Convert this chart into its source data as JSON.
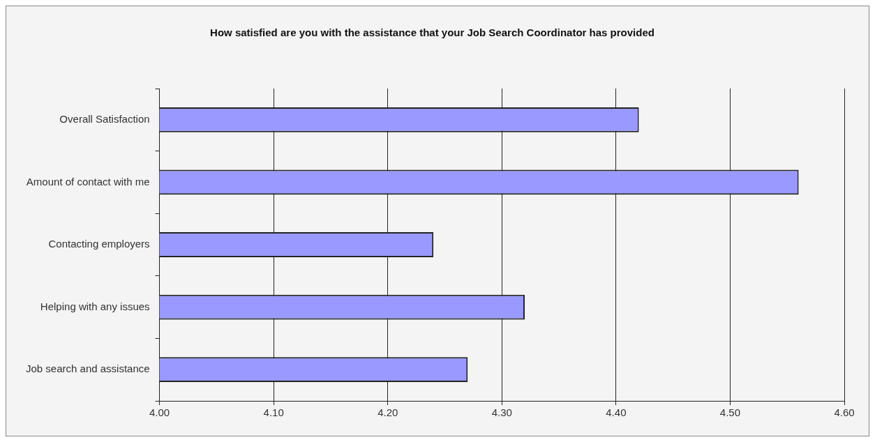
{
  "chart_data": {
    "type": "bar",
    "orientation": "horizontal",
    "title": "How satisfied are you with the assistance that your Job Search Coordinator has provided",
    "categories": [
      "Overall Satisfaction",
      "Amount of contact with me",
      "Contacting employers",
      "Helping with any issues",
      "Job search and assistance"
    ],
    "values": [
      4.42,
      4.56,
      4.24,
      4.32,
      4.27
    ],
    "color": "#9999ff",
    "xlim": [
      4.0,
      4.6
    ],
    "xticks": [
      {
        "value": 4.0,
        "label": "4.00"
      },
      {
        "value": 4.1,
        "label": "4.10"
      },
      {
        "value": 4.2,
        "label": "4.20"
      },
      {
        "value": 4.3,
        "label": "4.30"
      },
      {
        "value": 4.4,
        "label": "4.40"
      },
      {
        "value": 4.5,
        "label": "4.50"
      },
      {
        "value": 4.6,
        "label": "4.60"
      }
    ],
    "grid": "x",
    "legend": false
  }
}
